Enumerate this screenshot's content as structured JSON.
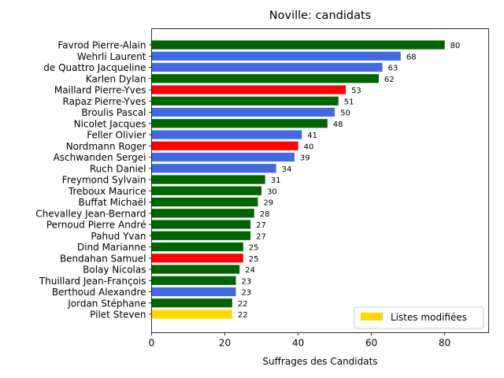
{
  "chart_data": {
    "type": "bar",
    "orientation": "horizontal",
    "title": "Noville: candidats",
    "xlabel": "Suffrages des Candidats",
    "ylabel": "",
    "xlim": [
      0,
      92
    ],
    "xticks": [
      0,
      20,
      40,
      60,
      80
    ],
    "grid": false,
    "legend": {
      "placement": "lower-right",
      "entries": [
        {
          "label": "Listes modifiées",
          "color": "#FFD700"
        }
      ]
    },
    "colors": {
      "green": "#006400",
      "blue": "#4169E1",
      "red": "#FF0000",
      "gold": "#FFD700"
    },
    "categories": [
      "Favrod Pierre-Alain",
      "Wehrli Laurent",
      "de Quattro Jacqueline",
      "Karlen Dylan",
      "Maillard Pierre-Yves",
      "Rapaz Pierre-Yves",
      "Broulis Pascal",
      "Nicolet Jacques",
      "Feller Olivier",
      "Nordmann Roger",
      "Aschwanden Sergei",
      "Ruch Daniel",
      "Freymond Sylvain",
      "Treboux Maurice",
      "Buffat Michaël",
      "Chevalley Jean-Bernard",
      "Pernoud Pierre André",
      "Pahud Yvan",
      "Dind Marianne",
      "Bendahan Samuel",
      "Bolay Nicolas",
      "Thuillard Jean-François",
      "Berthoud Alexandre",
      "Jordan Stéphane",
      "Pilet Steven"
    ],
    "values": [
      80,
      68,
      63,
      62,
      53,
      51,
      50,
      48,
      41,
      40,
      39,
      34,
      31,
      30,
      29,
      28,
      27,
      27,
      25,
      25,
      24,
      23,
      23,
      22,
      22
    ],
    "bar_colors": [
      "#006400",
      "#4169E1",
      "#4169E1",
      "#006400",
      "#FF0000",
      "#006400",
      "#4169E1",
      "#006400",
      "#4169E1",
      "#FF0000",
      "#4169E1",
      "#4169E1",
      "#006400",
      "#006400",
      "#006400",
      "#006400",
      "#006400",
      "#006400",
      "#006400",
      "#FF0000",
      "#006400",
      "#006400",
      "#4169E1",
      "#006400",
      "#FFD700"
    ]
  }
}
